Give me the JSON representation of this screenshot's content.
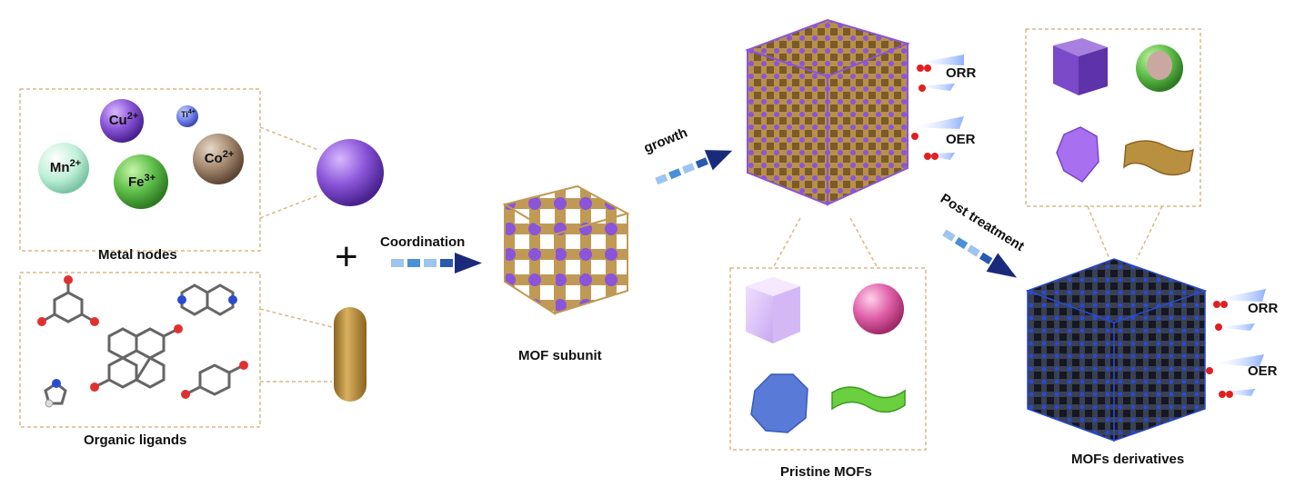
{
  "metal_nodes": {
    "label": "Metal nodes",
    "ions": [
      {
        "symbol": "Cu",
        "charge": "2+",
        "color": "#9b5de5"
      },
      {
        "symbol": "Ti",
        "charge": "4+",
        "color": "#6f7fe8"
      },
      {
        "symbol": "Mn",
        "charge": "2+",
        "color": "#bff0d8"
      },
      {
        "symbol": "Fe",
        "charge": "3+",
        "color": "#5fbf4a"
      },
      {
        "symbol": "Co",
        "charge": "2+",
        "color": "#a68a72"
      }
    ]
  },
  "organic_ligands": {
    "label": "Organic ligands"
  },
  "plus": "+",
  "coordination": "Coordination",
  "mof_subunit": "MOF subunit",
  "growth": "growth",
  "post_treatment": "Post treatment",
  "reactions_top": {
    "orr": "ORR",
    "oer": "OER"
  },
  "reactions_bottom": {
    "orr": "ORR",
    "oer": "OER"
  },
  "pristine_mofs": "Pristine MOFs",
  "mofs_derivatives": "MOFs derivatives",
  "colors": {
    "metal_purple": "#8a55d8",
    "linker_tan": "#b8904a",
    "box_border": "#d9b98a",
    "arrow_dark": "#1a2a7a",
    "arrow_light": "#4a90d9",
    "derivative_dark": "#1f2433",
    "derivative_blue": "#2a4ad0"
  }
}
